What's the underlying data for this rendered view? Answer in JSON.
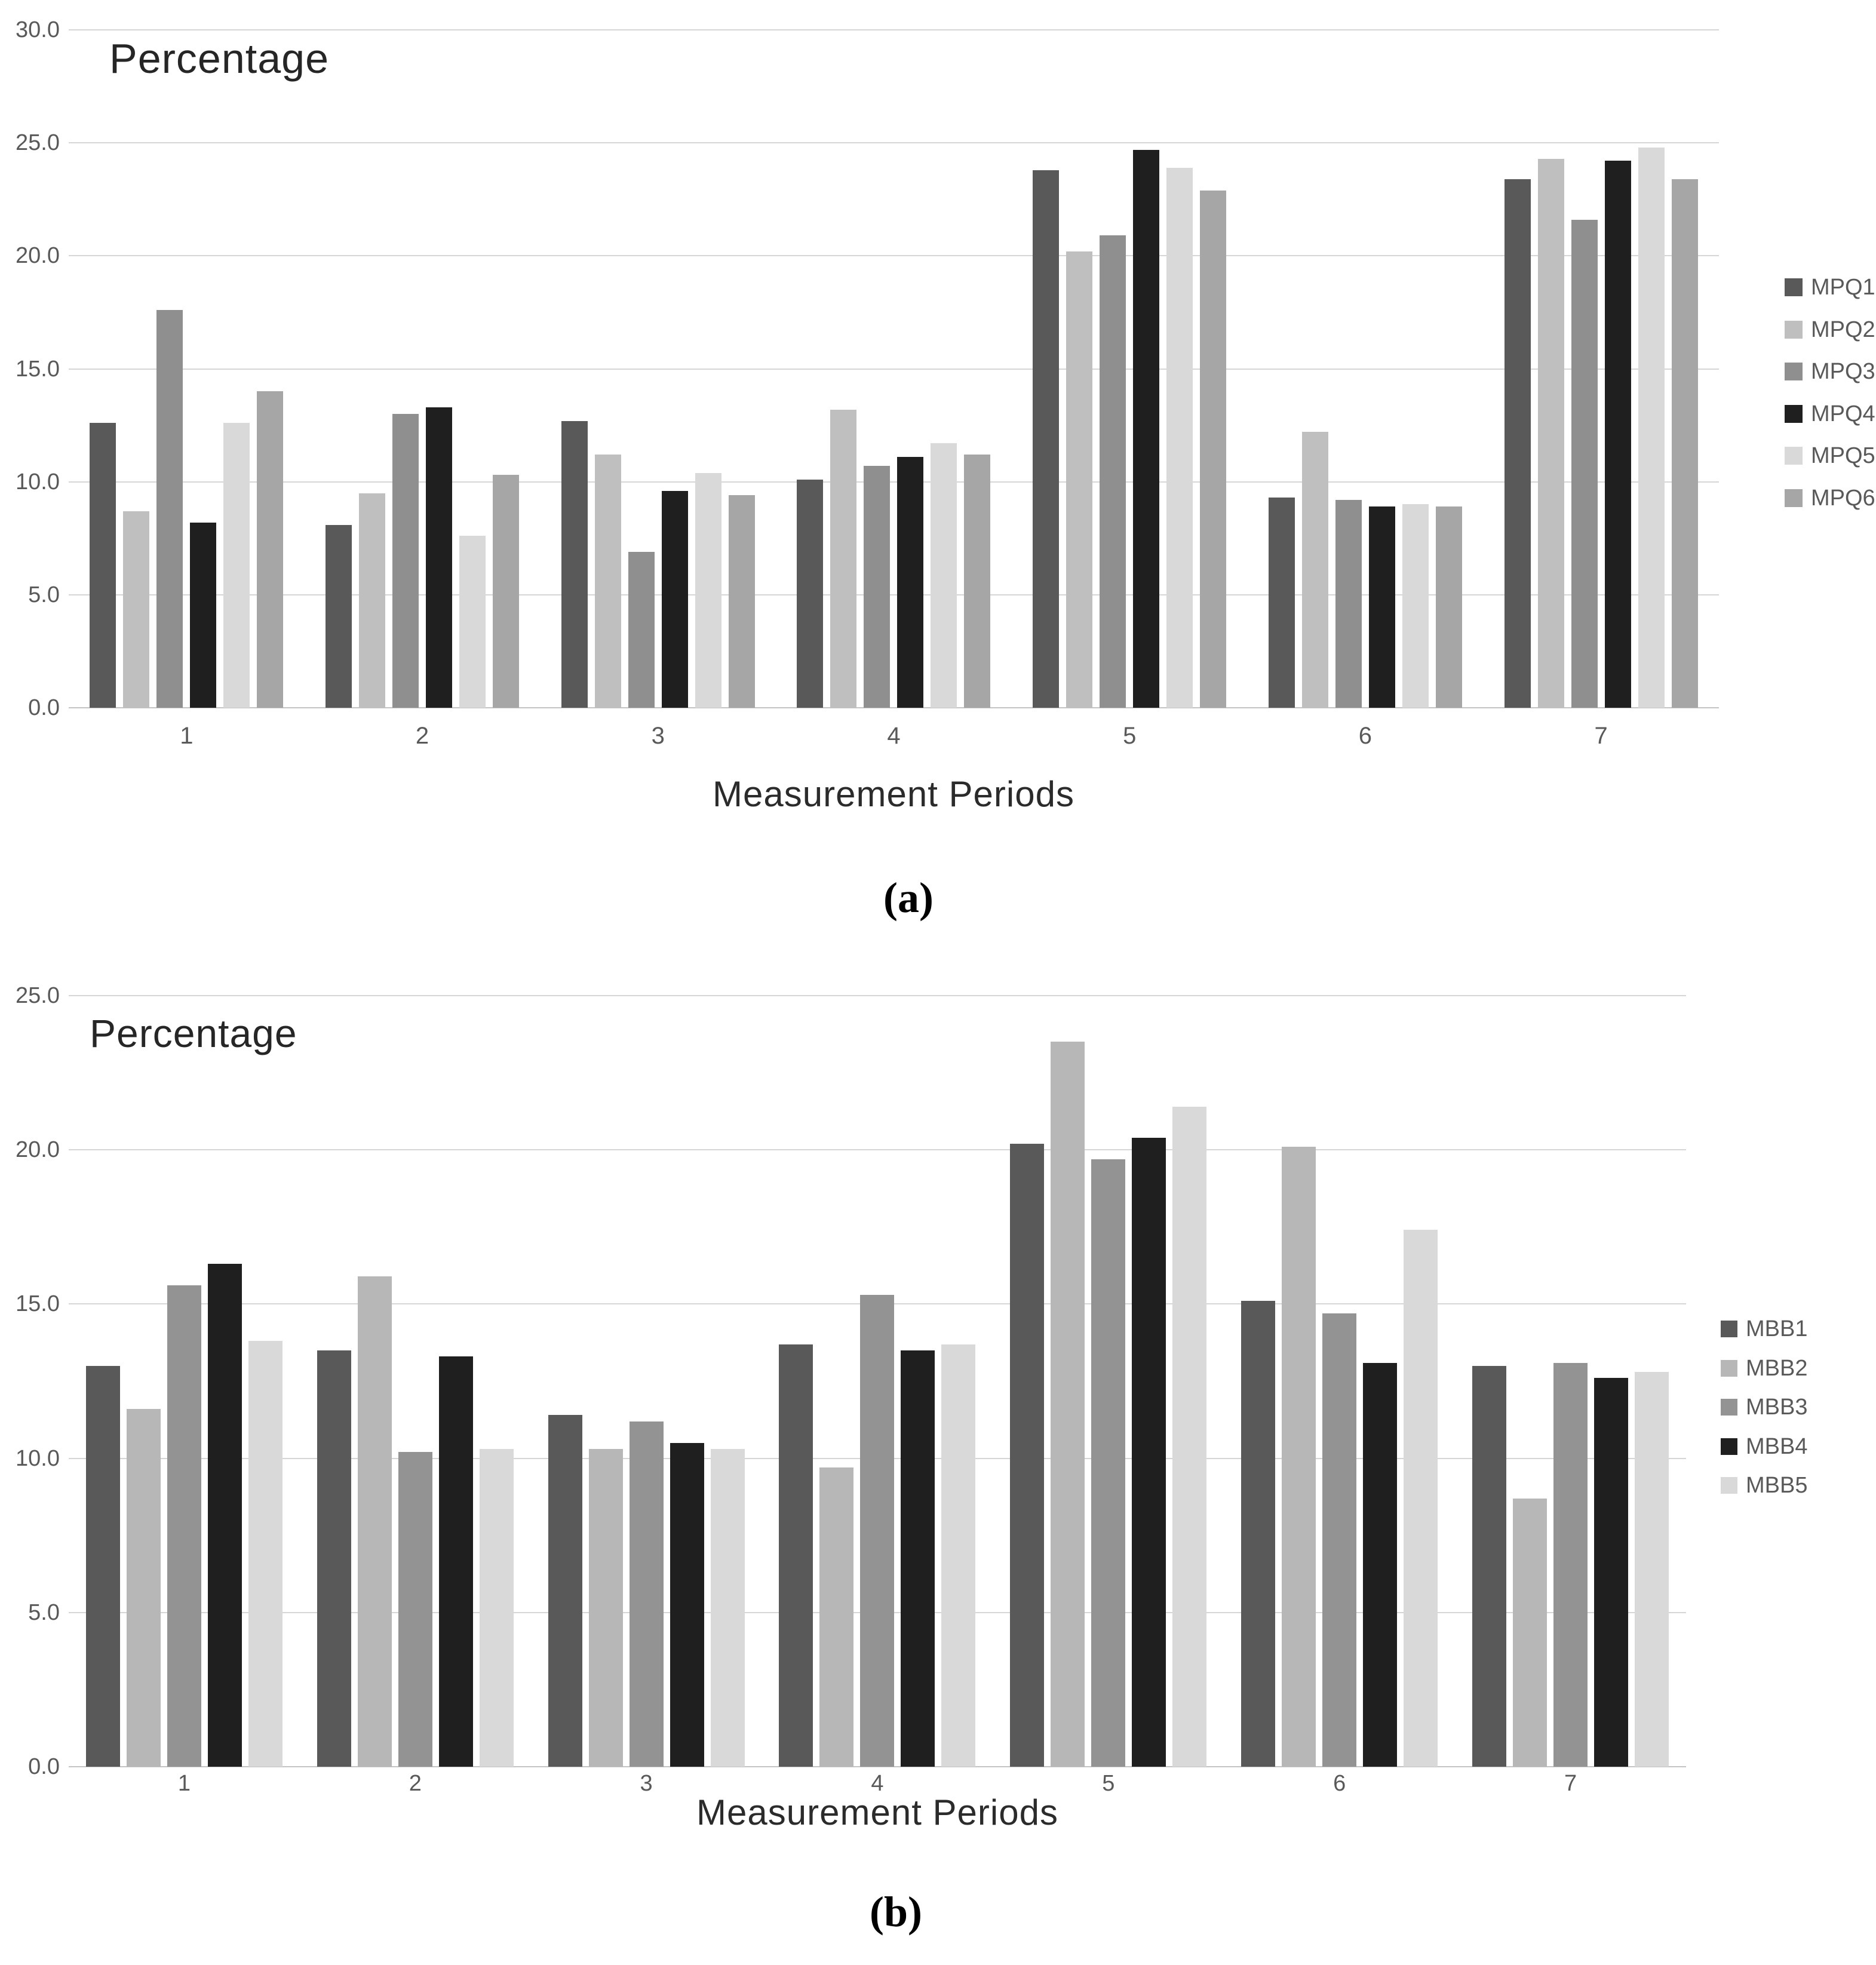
{
  "page": {
    "background": "#ffffff"
  },
  "chart_data": [
    {
      "id": "a",
      "type": "bar",
      "title": "Percentage",
      "xlabel": "Measurement Periods",
      "caption": "(a)",
      "categories": [
        "1",
        "2",
        "3",
        "4",
        "5",
        "6",
        "7"
      ],
      "ylim": [
        0,
        30
      ],
      "ytick_step": 5,
      "ytick_labels": [
        "0.0",
        "5.0",
        "10.0",
        "15.0",
        "20.0",
        "25.0",
        "30.0"
      ],
      "grid": true,
      "legend_position": "right",
      "series": [
        {
          "name": "MPQ1",
          "color": "#595959",
          "values": [
            12.6,
            8.1,
            12.7,
            10.1,
            23.8,
            9.3,
            23.4
          ]
        },
        {
          "name": "MPQ2",
          "color": "#bfbfbf",
          "values": [
            8.7,
            9.5,
            11.2,
            13.2,
            20.2,
            12.2,
            24.3
          ]
        },
        {
          "name": "MPQ3",
          "color": "#8f8f8f",
          "values": [
            17.6,
            13.0,
            6.9,
            10.7,
            20.9,
            9.2,
            21.6
          ]
        },
        {
          "name": "MPQ4",
          "color": "#1f1f1f",
          "values": [
            8.2,
            13.3,
            9.6,
            11.1,
            24.7,
            8.9,
            24.2
          ]
        },
        {
          "name": "MPQ5",
          "color": "#d9d9d9",
          "values": [
            12.6,
            7.6,
            10.4,
            11.7,
            23.9,
            9.0,
            24.8
          ]
        },
        {
          "name": "MPQ6",
          "color": "#a6a6a6",
          "values": [
            14.0,
            10.3,
            9.4,
            11.2,
            22.9,
            8.9,
            23.4
          ]
        }
      ]
    },
    {
      "id": "b",
      "type": "bar",
      "title": "Percentage",
      "xlabel": "Measurement Periods",
      "caption": "(b)",
      "categories": [
        "1",
        "2",
        "3",
        "4",
        "5",
        "6",
        "7"
      ],
      "ylim": [
        0,
        25
      ],
      "ytick_step": 5,
      "ytick_labels": [
        "0.0",
        "5.0",
        "10.0",
        "15.0",
        "20.0",
        "25.0"
      ],
      "grid": true,
      "legend_position": "right",
      "series": [
        {
          "name": "MBB1",
          "color": "#595959",
          "values": [
            13.0,
            13.5,
            11.4,
            13.7,
            20.2,
            15.1,
            13.0
          ]
        },
        {
          "name": "MBB2",
          "color": "#b7b7b7",
          "values": [
            11.6,
            15.9,
            10.3,
            9.7,
            23.5,
            20.1,
            8.7
          ]
        },
        {
          "name": "MBB3",
          "color": "#939393",
          "values": [
            15.6,
            10.2,
            11.2,
            15.3,
            19.7,
            14.7,
            13.1
          ]
        },
        {
          "name": "MBB4",
          "color": "#1f1f1f",
          "values": [
            16.3,
            13.3,
            10.5,
            13.5,
            20.4,
            13.1,
            12.6
          ]
        },
        {
          "name": "MBB5",
          "color": "#d9d9d9",
          "values": [
            13.8,
            10.3,
            10.3,
            13.7,
            21.4,
            17.4,
            12.8
          ]
        }
      ]
    }
  ]
}
